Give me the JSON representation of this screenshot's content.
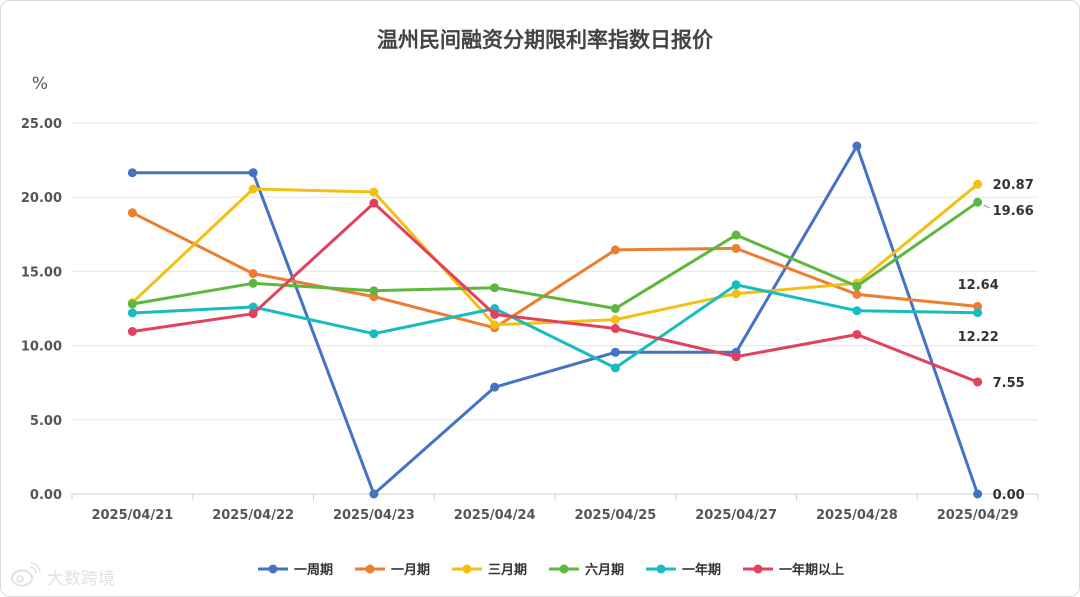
{
  "chart_data": {
    "type": "line",
    "title": "温州民间融资分期限利率指数日报价",
    "ylabel": "%",
    "ylim": [
      0,
      25
    ],
    "yticks": [
      "0.00",
      "5.00",
      "10.00",
      "15.00",
      "20.00",
      "25.00"
    ],
    "grid": true,
    "legend_position": "bottom",
    "categories": [
      "2025/04/21",
      "2025/04/22",
      "2025/04/23",
      "2025/04/24",
      "2025/04/25",
      "2025/04/27",
      "2025/04/28",
      "2025/04/29"
    ],
    "series": [
      {
        "name": "一周期",
        "color": "#4472c4",
        "values": [
          21.65,
          21.65,
          0.0,
          7.2,
          9.55,
          9.55,
          23.45,
          0.0
        ]
      },
      {
        "name": "一月期",
        "color": "#ed7d31",
        "values": [
          18.95,
          14.85,
          13.3,
          11.2,
          16.45,
          16.55,
          13.45,
          12.64
        ]
      },
      {
        "name": "三月期",
        "color": "#f2c012",
        "values": [
          12.9,
          20.55,
          20.35,
          11.4,
          11.75,
          13.5,
          14.2,
          20.87
        ]
      },
      {
        "name": "六月期",
        "color": "#5cb83c",
        "values": [
          12.8,
          14.2,
          13.7,
          13.9,
          12.5,
          17.45,
          14.0,
          19.66
        ]
      },
      {
        "name": "一年期",
        "color": "#16bcc0",
        "values": [
          12.2,
          12.6,
          10.8,
          12.5,
          8.5,
          14.1,
          12.35,
          12.22
        ]
      },
      {
        "name": "一年期以上",
        "color": "#e2415d",
        "values": [
          10.95,
          12.15,
          19.6,
          12.1,
          11.15,
          9.25,
          10.75,
          7.55
        ]
      }
    ],
    "data_labels": [
      "20.87",
      "19.66",
      "12.64",
      "12.22",
      "7.55",
      "0.00"
    ]
  },
  "watermark": {
    "icon": "weibo-icon",
    "text": "大数跨境"
  }
}
